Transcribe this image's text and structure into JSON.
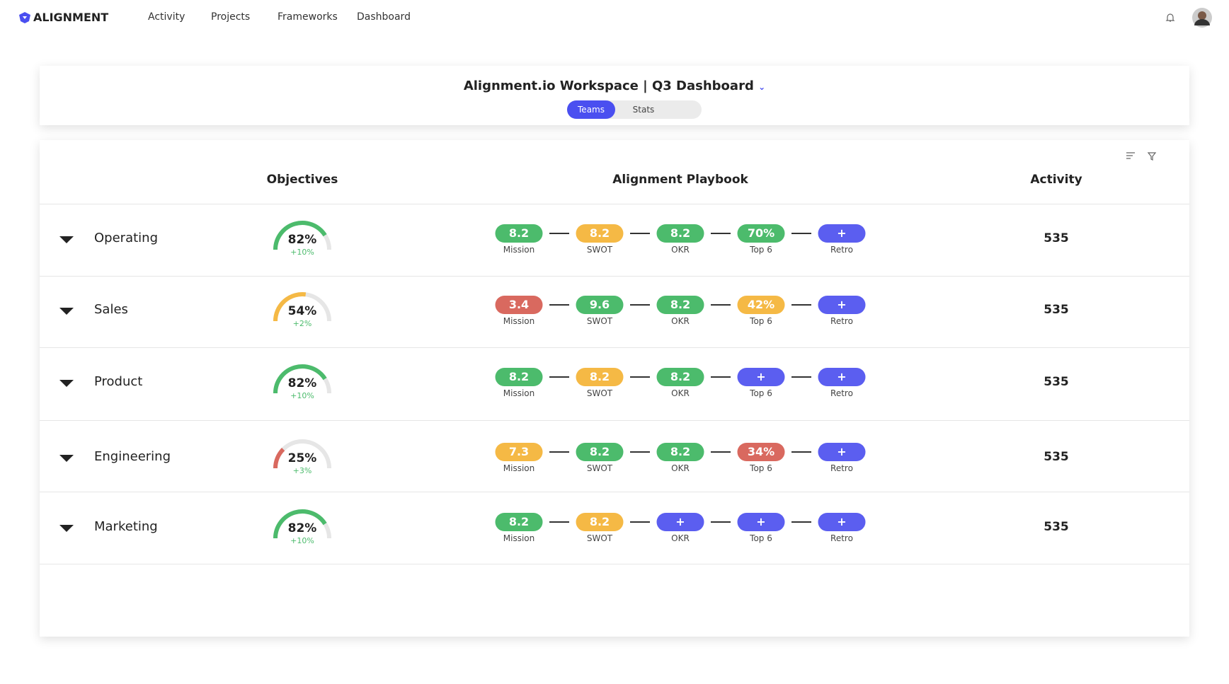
{
  "nav": {
    "brand": "ALIGNMENT",
    "items": [
      "Activity",
      "Projects",
      "Frameworks",
      "Dashboard"
    ]
  },
  "header": {
    "title": "Alignment.io Workspace | Q3 Dashboard",
    "tabs": [
      "Teams",
      "Stats"
    ]
  },
  "table": {
    "columns": [
      "Objectives",
      "Alignment Playbook",
      "Activity"
    ],
    "steps": [
      "Mission",
      "SWOT",
      "OKR",
      "Top 6",
      "Retro"
    ],
    "rows": [
      {
        "team": "Operating",
        "objective": 82,
        "objective_label": "82%",
        "change": "+10%",
        "color": "#4cbb6c",
        "playbook": [
          {
            "text": "8.2",
            "color": "#4cbb6c"
          },
          {
            "text": "8.2",
            "color": "#f5b945"
          },
          {
            "text": "8.2",
            "color": "#4cbb6c"
          },
          {
            "text": "70%",
            "color": "#4cbb6c"
          },
          {
            "text": "+",
            "color": "#5b5ef0"
          }
        ],
        "activity": 535
      },
      {
        "team": "Sales",
        "objective": 54,
        "objective_label": "54%",
        "change": "+2%",
        "color": "#f5b945",
        "playbook": [
          {
            "text": "3.4",
            "color": "#d9695f"
          },
          {
            "text": "9.6",
            "color": "#4cbb6c"
          },
          {
            "text": "8.2",
            "color": "#4cbb6c"
          },
          {
            "text": "42%",
            "color": "#f5b945"
          },
          {
            "text": "+",
            "color": "#5b5ef0"
          }
        ],
        "activity": 535
      },
      {
        "team": "Product",
        "objective": 82,
        "objective_label": "82%",
        "change": "+10%",
        "color": "#4cbb6c",
        "playbook": [
          {
            "text": "8.2",
            "color": "#4cbb6c"
          },
          {
            "text": "8.2",
            "color": "#f5b945"
          },
          {
            "text": "8.2",
            "color": "#4cbb6c"
          },
          {
            "text": "+",
            "color": "#5b5ef0"
          },
          {
            "text": "+",
            "color": "#5b5ef0"
          }
        ],
        "activity": 535
      },
      {
        "team": "Engineering",
        "objective": 25,
        "objective_label": "25%",
        "change": "+3%",
        "color": "#d9695f",
        "playbook": [
          {
            "text": "7.3",
            "color": "#f5b945"
          },
          {
            "text": "8.2",
            "color": "#4cbb6c"
          },
          {
            "text": "8.2",
            "color": "#4cbb6c"
          },
          {
            "text": "34%",
            "color": "#d9695f"
          },
          {
            "text": "+",
            "color": "#5b5ef0"
          }
        ],
        "activity": 535
      },
      {
        "team": "Marketing",
        "objective": 82,
        "objective_label": "82%",
        "change": "+10%",
        "color": "#4cbb6c",
        "playbook": [
          {
            "text": "8.2",
            "color": "#4cbb6c"
          },
          {
            "text": "8.2",
            "color": "#f5b945"
          },
          {
            "text": "+",
            "color": "#5b5ef0"
          },
          {
            "text": "+",
            "color": "#5b5ef0"
          },
          {
            "text": "+",
            "color": "#5b5ef0"
          }
        ],
        "activity": 535
      }
    ]
  }
}
